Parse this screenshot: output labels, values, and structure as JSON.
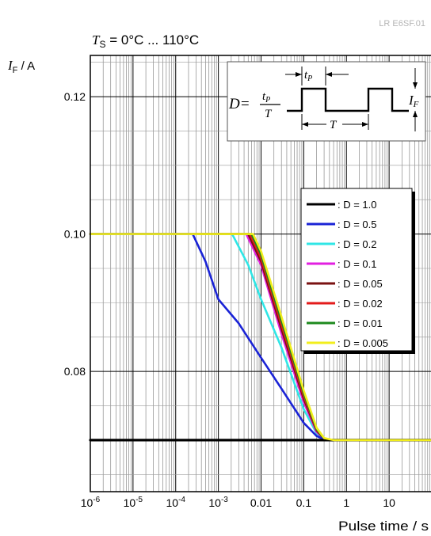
{
  "doc_id": "LR E6SF.01",
  "chart_data": {
    "type": "line",
    "title": {
      "symbol": "T",
      "subscript": "S",
      "text": " = 0°C ... 110°C"
    },
    "ylabel": {
      "symbol": "I",
      "subscript": "F",
      "unit": " / A"
    },
    "xlabel": "Pulse time / s",
    "x_scale": "log",
    "xlim": [
      1e-06,
      100
    ],
    "ylim": [
      0.0625,
      0.126
    ],
    "x_ticks": [
      1e-06,
      1e-05,
      0.0001,
      0.001,
      0.01,
      0.1,
      1,
      10
    ],
    "x_tick_labels": [
      {
        "base": "10",
        "exp": "-6"
      },
      {
        "base": "10",
        "exp": "-5"
      },
      {
        "base": "10",
        "exp": "-4"
      },
      {
        "base": "10",
        "exp": "-3"
      },
      {
        "base": "0.01",
        "exp": ""
      },
      {
        "base": "0.1",
        "exp": ""
      },
      {
        "base": "1",
        "exp": ""
      },
      {
        "base": "10",
        "exp": ""
      }
    ],
    "y_ticks": [
      0.08,
      0.1,
      0.12
    ],
    "y_tick_labels": [
      "0.08",
      "0.10",
      "0.12"
    ],
    "grid": true,
    "legend_position": "right",
    "series": [
      {
        "name": ": D = 1.0",
        "color": "#000000",
        "x": [
          1e-06,
          100
        ],
        "y": [
          0.07,
          0.07
        ]
      },
      {
        "name": ": D = 0.5",
        "color": "#1a23d6",
        "x": [
          1e-06,
          0.00025,
          0.0005,
          0.001,
          0.003,
          0.01,
          0.03,
          0.1,
          0.2,
          0.3,
          0.5,
          100
        ],
        "y": [
          0.1,
          0.1,
          0.096,
          0.0905,
          0.087,
          0.082,
          0.0775,
          0.0725,
          0.0706,
          0.0701,
          0.07,
          0.07
        ]
      },
      {
        "name": ": D = 0.2",
        "color": "#2fe6e6",
        "x": [
          1e-06,
          0.0021,
          0.005,
          0.01,
          0.03,
          0.1,
          0.2,
          0.3,
          0.5,
          100
        ],
        "y": [
          0.1,
          0.1,
          0.0955,
          0.0905,
          0.0835,
          0.0745,
          0.071,
          0.0702,
          0.07,
          0.07
        ]
      },
      {
        "name": ": D = 0.1",
        "color": "#e21fe0",
        "x": [
          1e-06,
          0.0045,
          0.01,
          0.03,
          0.1,
          0.2,
          0.3,
          0.5,
          100
        ],
        "y": [
          0.1,
          0.1,
          0.0955,
          0.0855,
          0.0755,
          0.0712,
          0.0702,
          0.07,
          0.07
        ]
      },
      {
        "name": ": D = 0.05",
        "color": "#7a1212",
        "x": [
          1e-06,
          0.005,
          0.01,
          0.03,
          0.1,
          0.2,
          0.3,
          0.5,
          100
        ],
        "y": [
          0.1,
          0.1,
          0.096,
          0.0862,
          0.076,
          0.0714,
          0.0702,
          0.07,
          0.07
        ]
      },
      {
        "name": ": D = 0.02",
        "color": "#e31b1b",
        "x": [
          1e-06,
          0.0055,
          0.01,
          0.03,
          0.1,
          0.2,
          0.3,
          0.5,
          100
        ],
        "y": [
          0.1,
          0.1,
          0.0965,
          0.0868,
          0.0764,
          0.0715,
          0.0702,
          0.07,
          0.07
        ]
      },
      {
        "name": ": D = 0.01",
        "color": "#1e8a1e",
        "x": [
          1e-06,
          0.006,
          0.01,
          0.03,
          0.1,
          0.2,
          0.3,
          0.5,
          100
        ],
        "y": [
          0.1,
          0.1,
          0.097,
          0.0874,
          0.0768,
          0.0716,
          0.0702,
          0.07,
          0.07
        ]
      },
      {
        "name": ": D = 0.005",
        "color": "#f2ee1c",
        "x": [
          1e-06,
          0.0065,
          0.01,
          0.03,
          0.1,
          0.2,
          0.3,
          0.5,
          100
        ],
        "y": [
          0.1,
          0.1,
          0.0975,
          0.088,
          0.0772,
          0.0718,
          0.0703,
          0.07,
          0.07
        ]
      }
    ],
    "inset": {
      "D_label": "D=",
      "tp_label": "t",
      "tp_sub": "P",
      "T_label": "T",
      "IF_label": "I",
      "IF_sub": "F"
    }
  }
}
